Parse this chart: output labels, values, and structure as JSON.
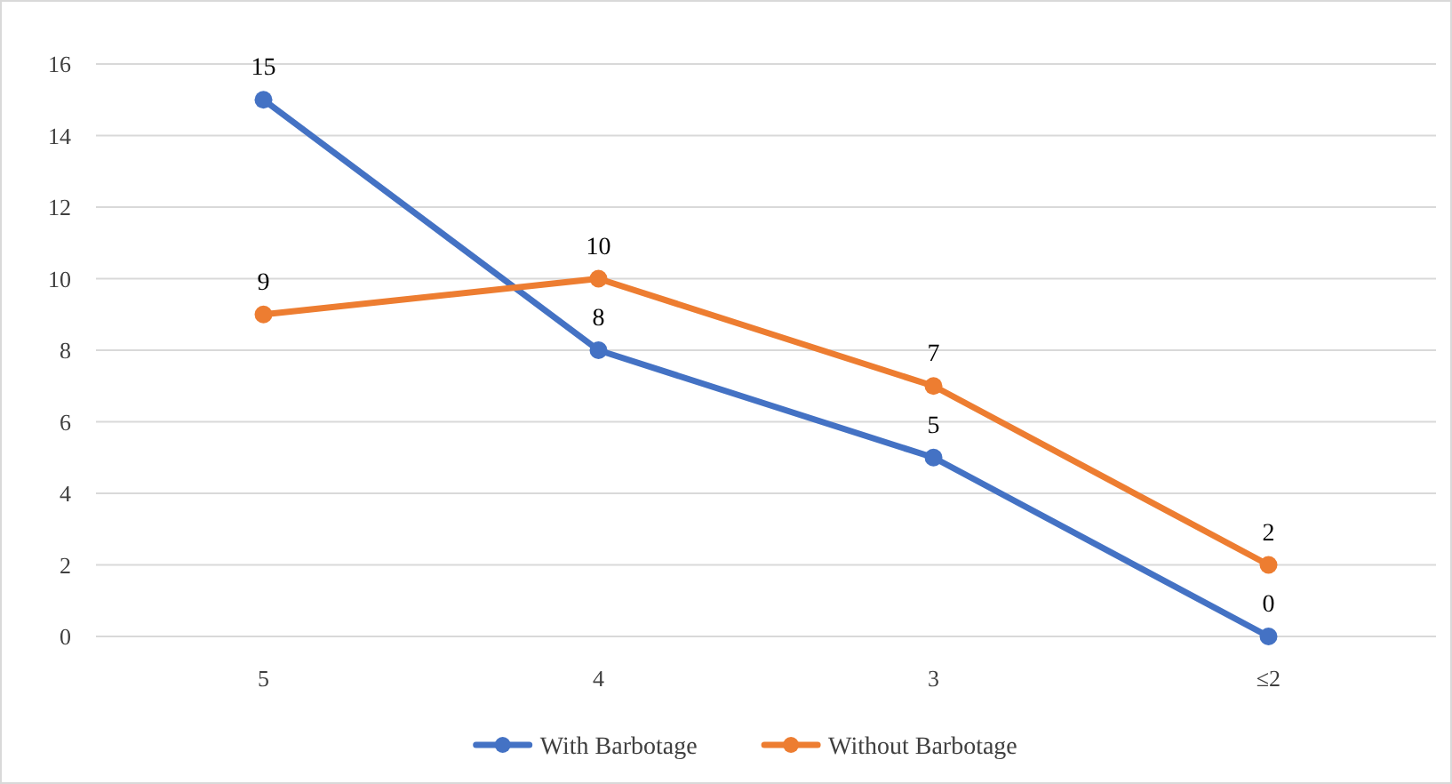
{
  "chart_data": {
    "type": "line",
    "categories": [
      "5",
      "4",
      "3",
      "≤2"
    ],
    "series": [
      {
        "name": "With Barbotage",
        "color": "#4472c4",
        "values": [
          15,
          8,
          5,
          0
        ]
      },
      {
        "name": "Without Barbotage",
        "color": "#ed7d31",
        "values": [
          9,
          10,
          7,
          2
        ]
      }
    ],
    "ylim": [
      0,
      16
    ],
    "yticks": [
      0,
      2,
      4,
      6,
      8,
      10,
      12,
      14,
      16
    ],
    "grid": "y",
    "legend": "bottom",
    "marker": "circle",
    "line_style": "solid",
    "data_labels": true
  }
}
